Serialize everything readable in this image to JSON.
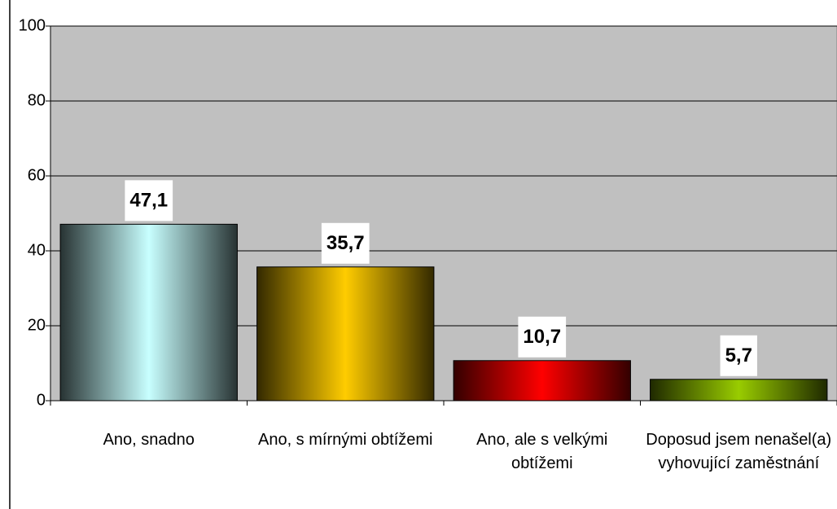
{
  "chart_data": {
    "type": "bar",
    "categories": [
      "Ano, snadno",
      "Ano, s mírnými obtížemi",
      "Ano, ale s velkými obtížemi",
      "Doposud jsem nenašel(a) vyhovující zaměstnání"
    ],
    "values": [
      47.1,
      35.7,
      10.7,
      5.7
    ],
    "value_labels": [
      "47,1",
      "35,7",
      "10,7",
      "5,7"
    ],
    "colors": [
      "#c8ffff",
      "#ffcc00",
      "#ff0000",
      "#99cc00"
    ],
    "ylim": [
      0,
      100
    ],
    "yticks": [
      0,
      20,
      40,
      60,
      80,
      100
    ],
    "grid": true
  }
}
